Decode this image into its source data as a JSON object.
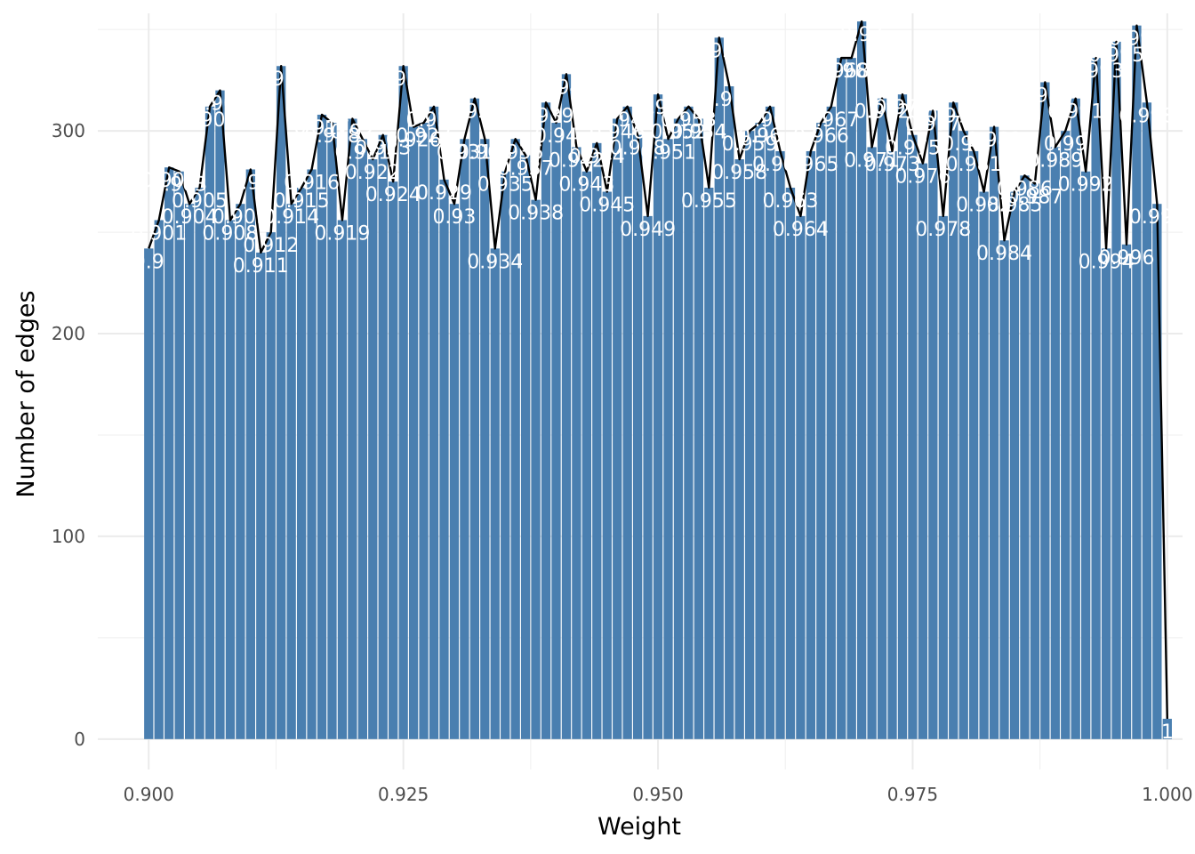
{
  "chart_data": {
    "type": "bar",
    "xlabel": "Weight",
    "ylabel": "Number of edges",
    "xlim": [
      0.895,
      1.0015
    ],
    "ylim": [
      -15,
      358
    ],
    "x_ticks": [
      0.9,
      0.925,
      0.95,
      0.975,
      1.0
    ],
    "x_tick_labels": [
      "0.900",
      "0.925",
      "0.950",
      "0.975",
      "1.000"
    ],
    "y_ticks": [
      0,
      100,
      200,
      300
    ],
    "y_tick_labels": [
      "0",
      "100",
      "200",
      "300"
    ],
    "grid": true,
    "bar_color": "#4a7fb0",
    "line_color": "#000000",
    "x": [
      0.9,
      0.901,
      0.902,
      0.903,
      0.904,
      0.905,
      0.906,
      0.907,
      0.908,
      0.909,
      0.91,
      0.911,
      0.912,
      0.913,
      0.914,
      0.915,
      0.916,
      0.917,
      0.918,
      0.919,
      0.92,
      0.921,
      0.922,
      0.923,
      0.924,
      0.925,
      0.926,
      0.927,
      0.928,
      0.929,
      0.93,
      0.931,
      0.932,
      0.933,
      0.934,
      0.935,
      0.936,
      0.937,
      0.938,
      0.939,
      0.94,
      0.941,
      0.942,
      0.943,
      0.944,
      0.945,
      0.946,
      0.947,
      0.948,
      0.949,
      0.95,
      0.951,
      0.952,
      0.953,
      0.954,
      0.955,
      0.956,
      0.957,
      0.958,
      0.959,
      0.96,
      0.961,
      0.962,
      0.963,
      0.964,
      0.965,
      0.966,
      0.967,
      0.968,
      0.969,
      0.97,
      0.971,
      0.972,
      0.973,
      0.974,
      0.975,
      0.976,
      0.977,
      0.978,
      0.979,
      0.98,
      0.981,
      0.982,
      0.983,
      0.984,
      0.985,
      0.986,
      0.987,
      0.988,
      0.989,
      0.99,
      0.991,
      0.992,
      0.993,
      0.994,
      0.995,
      0.996,
      0.997,
      0.998,
      0.999,
      1.0
    ],
    "values": [
      242,
      256,
      282,
      280,
      264,
      272,
      312,
      320,
      256,
      264,
      281,
      240,
      250,
      332,
      264,
      272,
      281,
      308,
      304,
      256,
      306,
      296,
      286,
      298,
      275,
      332,
      302,
      304,
      312,
      276,
      264,
      296,
      316,
      296,
      242,
      280,
      296,
      288,
      266,
      314,
      304,
      328,
      292,
      280,
      294,
      270,
      306,
      312,
      298,
      258,
      318,
      296,
      306,
      312,
      306,
      272,
      346,
      322,
      286,
      300,
      304,
      312,
      290,
      272,
      258,
      290,
      304,
      312,
      336,
      336,
      354,
      292,
      316,
      290,
      318,
      298,
      284,
      310,
      258,
      314,
      300,
      290,
      270,
      302,
      246,
      270,
      278,
      274,
      324,
      292,
      300,
      316,
      280,
      336,
      242,
      344,
      244,
      352,
      314,
      264,
      10
    ],
    "labels": [
      "0.9",
      "0.901",
      "0.902",
      "0.903",
      "0.904",
      "0.905",
      "0.906",
      "0.907",
      "0.908",
      "0.909",
      "0.91",
      "0.911",
      "0.912",
      "0.913",
      "0.914",
      "0.915",
      "0.916",
      "0.917",
      "0.918",
      "0.919",
      "0.92",
      "0.921",
      "0.922",
      "0.923",
      "0.924",
      "0.925",
      "0.926",
      "0.927",
      "0.928",
      "0.929",
      "0.93",
      "0.931",
      "0.932",
      "0.933",
      "0.934",
      "0.935",
      "0.936",
      "0.937",
      "0.938",
      "0.939",
      "0.94",
      "0.941",
      "0.942",
      "0.943",
      "0.944",
      "0.945",
      "0.946",
      "0.947",
      "0.948",
      "0.949",
      "0.95",
      "0.951",
      "0.952",
      "0.953",
      "0.954",
      "0.955",
      "0.956",
      "0.957",
      "0.958",
      "0.959",
      "0.96",
      "0.961",
      "0.962",
      "0.963",
      "0.964",
      "0.965",
      "0.966",
      "0.967",
      "0.968",
      "0.969",
      "0.97",
      "0.971",
      "0.972",
      "0.973",
      "0.974",
      "0.975",
      "0.976",
      "0.977",
      "0.978",
      "0.979",
      "0.98",
      "0.981",
      "0.982",
      "0.983",
      "0.984",
      "0.985",
      "0.986",
      "0.987",
      "0.988",
      "0.989",
      "0.99",
      "0.991",
      "0.992",
      "0.993",
      "0.994",
      "0.995",
      "0.996",
      "0.997",
      "0.998",
      "0.999",
      "1"
    ]
  }
}
